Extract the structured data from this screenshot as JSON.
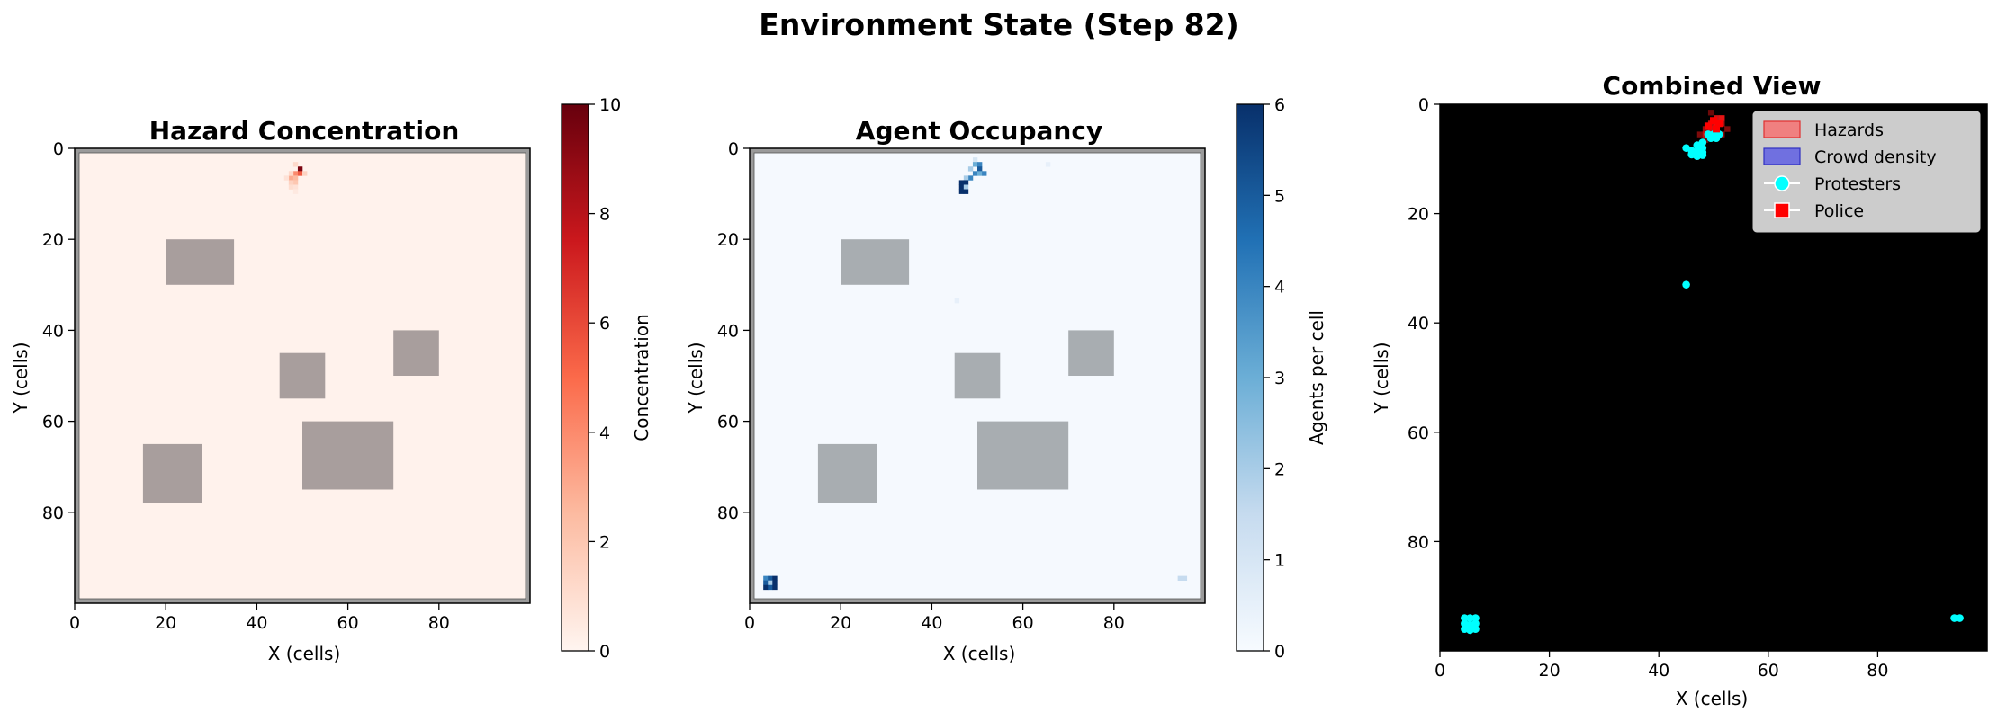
{
  "figure": {
    "suptitle": "Environment State (Step 82)"
  },
  "chart_data": [
    {
      "type": "heatmap",
      "title": "Hazard Concentration",
      "xlabel": "X (cells)",
      "ylabel": "Y (cells)",
      "xlim": [
        0,
        100
      ],
      "ylim": [
        100,
        0
      ],
      "xticks": [
        "0",
        "20",
        "40",
        "60",
        "80"
      ],
      "yticks": [
        "0",
        "20",
        "40",
        "60",
        "80"
      ],
      "colormap": [
        "#fff5f0",
        "#fcbba1",
        "#fb6a4a",
        "#cb181d",
        "#67000d"
      ],
      "base_color": "#fff2ec",
      "colorbar": {
        "label": "Concentration",
        "range": [
          0,
          10
        ],
        "ticks": [
          "0",
          "2",
          "4",
          "6",
          "8",
          "10"
        ]
      },
      "obstacle_color": "#a89e9d",
      "obstacles": [
        [
          20,
          20,
          15,
          10
        ],
        [
          45,
          45,
          10,
          10
        ],
        [
          70,
          40,
          10,
          10
        ],
        [
          50,
          60,
          20,
          15
        ],
        [
          15,
          65,
          13,
          13
        ]
      ],
      "cells": [
        {
          "x": 49,
          "y": 4,
          "v": 9.5
        },
        {
          "x": 48,
          "y": 5,
          "v": 4.0
        },
        {
          "x": 49,
          "y": 5,
          "v": 5.5
        },
        {
          "x": 47,
          "y": 6,
          "v": 3.0
        },
        {
          "x": 48,
          "y": 6,
          "v": 2.5
        },
        {
          "x": 48,
          "y": 7,
          "v": 2.0
        },
        {
          "x": 47,
          "y": 7,
          "v": 1.5
        },
        {
          "x": 48,
          "y": 3,
          "v": 1.2
        },
        {
          "x": 47,
          "y": 8,
          "v": 1.0
        },
        {
          "x": 48,
          "y": 8,
          "v": 0.8
        },
        {
          "x": 50,
          "y": 5,
          "v": 1.5
        },
        {
          "x": 47,
          "y": 5,
          "v": 1.2
        },
        {
          "x": 48,
          "y": 9,
          "v": 0.5
        },
        {
          "x": 46,
          "y": 6,
          "v": 0.8
        }
      ]
    },
    {
      "type": "heatmap",
      "title": "Agent Occupancy",
      "xlabel": "X (cells)",
      "ylabel": "Y (cells)",
      "xlim": [
        0,
        100
      ],
      "ylim": [
        100,
        0
      ],
      "xticks": [
        "0",
        "20",
        "40",
        "60",
        "80"
      ],
      "yticks": [
        "0",
        "20",
        "40",
        "60",
        "80"
      ],
      "colormap": [
        "#f7fbff",
        "#c6dbef",
        "#6baed6",
        "#2171b5",
        "#08306b"
      ],
      "base_color": "#f5f9fe",
      "colorbar": {
        "label": "Agents per cell",
        "range": [
          0,
          6
        ],
        "ticks": [
          "0",
          "1",
          "2",
          "3",
          "4",
          "5",
          "6"
        ]
      },
      "obstacle_color": "#a8adb1",
      "obstacles": [
        [
          20,
          20,
          15,
          10
        ],
        [
          45,
          45,
          10,
          10
        ],
        [
          70,
          40,
          10,
          10
        ],
        [
          50,
          60,
          20,
          15
        ],
        [
          15,
          65,
          13,
          13
        ]
      ],
      "cells": [
        {
          "x": 49,
          "y": 2,
          "v": 1
        },
        {
          "x": 49,
          "y": 3,
          "v": 3
        },
        {
          "x": 50,
          "y": 3,
          "v": 4
        },
        {
          "x": 48,
          "y": 4,
          "v": 2
        },
        {
          "x": 50,
          "y": 4,
          "v": 5
        },
        {
          "x": 49,
          "y": 5,
          "v": 4
        },
        {
          "x": 50,
          "y": 5,
          "v": 3
        },
        {
          "x": 51,
          "y": 5,
          "v": 4
        },
        {
          "x": 48,
          "y": 6,
          "v": 4
        },
        {
          "x": 47,
          "y": 6,
          "v": 2
        },
        {
          "x": 46,
          "y": 7,
          "v": 6
        },
        {
          "x": 47,
          "y": 7,
          "v": 6
        },
        {
          "x": 46,
          "y": 8,
          "v": 6
        },
        {
          "x": 47,
          "y": 8,
          "v": 2
        },
        {
          "x": 46,
          "y": 9,
          "v": 6
        },
        {
          "x": 47,
          "y": 9,
          "v": 6
        },
        {
          "x": 65,
          "y": 3,
          "v": 0.5
        },
        {
          "x": 45,
          "y": 33,
          "v": 0.5
        },
        {
          "x": 3,
          "y": 94,
          "v": 4
        },
        {
          "x": 4,
          "y": 94,
          "v": 5
        },
        {
          "x": 5,
          "y": 94,
          "v": 6
        },
        {
          "x": 3,
          "y": 95,
          "v": 5
        },
        {
          "x": 4,
          "y": 95,
          "v": 2
        },
        {
          "x": 5,
          "y": 95,
          "v": 6
        },
        {
          "x": 3,
          "y": 96,
          "v": 6
        },
        {
          "x": 4,
          "y": 96,
          "v": 5
        },
        {
          "x": 5,
          "y": 96,
          "v": 6
        },
        {
          "x": 94,
          "y": 94,
          "v": 1.5
        },
        {
          "x": 95,
          "y": 94,
          "v": 1.5
        }
      ]
    },
    {
      "type": "scatter",
      "title": "Combined View",
      "xlabel": "X (cells)",
      "ylabel": "Y (cells)",
      "xlim": [
        0,
        100
      ],
      "ylim": [
        100,
        0
      ],
      "xticks": [
        "0",
        "20",
        "40",
        "60",
        "80"
      ],
      "yticks": [
        "0",
        "20",
        "40",
        "60",
        "80"
      ],
      "background": "#000000",
      "legend": {
        "placement": "top-right",
        "entries": [
          {
            "label": "Hazards",
            "marker": "patch",
            "color": "#f08080",
            "edge": "#e03030"
          },
          {
            "label": "Crowd density",
            "marker": "patch",
            "color": "#7070e0",
            "edge": "#3030c0"
          },
          {
            "label": "Protesters",
            "marker": "circle-line",
            "color": "#00ffff"
          },
          {
            "label": "Police",
            "marker": "square-line",
            "color": "#ff0000"
          }
        ]
      },
      "hazard_cells": [
        {
          "x": 50,
          "y": 2,
          "v": 0.9
        },
        {
          "x": 51,
          "y": 2,
          "v": 1.0
        },
        {
          "x": 49,
          "y": 3,
          "v": 0.8
        },
        {
          "x": 50,
          "y": 3,
          "v": 1.0
        },
        {
          "x": 51,
          "y": 3,
          "v": 0.7
        },
        {
          "x": 48,
          "y": 4,
          "v": 0.6
        },
        {
          "x": 49,
          "y": 4,
          "v": 0.9
        },
        {
          "x": 50,
          "y": 4,
          "v": 0.6
        },
        {
          "x": 48,
          "y": 5,
          "v": 0.8
        },
        {
          "x": 49,
          "y": 5,
          "v": 0.5
        },
        {
          "x": 47,
          "y": 5,
          "v": 0.4
        },
        {
          "x": 51,
          "y": 5,
          "v": 0.5
        },
        {
          "x": 52,
          "y": 4,
          "v": 0.4
        },
        {
          "x": 48,
          "y": 6,
          "v": 0.3
        },
        {
          "x": 49,
          "y": 1,
          "v": 0.3
        }
      ],
      "protesters": [
        [
          49,
          5.5
        ],
        [
          50,
          5.5
        ],
        [
          51,
          5.5
        ],
        [
          49.5,
          6.2
        ],
        [
          50.5,
          6.2
        ],
        [
          48,
          7
        ],
        [
          47,
          7.5
        ],
        [
          48,
          8
        ],
        [
          46,
          8.5
        ],
        [
          47,
          8.6
        ],
        [
          48,
          8.8
        ],
        [
          45,
          8
        ],
        [
          46,
          9.2
        ],
        [
          47,
          9.5
        ],
        [
          48,
          9.3
        ],
        [
          45,
          33
        ],
        [
          4.5,
          94
        ],
        [
          5.5,
          94
        ],
        [
          6.5,
          94
        ],
        [
          4.5,
          95
        ],
        [
          5.5,
          95.2
        ],
        [
          6.5,
          95
        ],
        [
          4.5,
          96
        ],
        [
          5.5,
          96.2
        ],
        [
          6.5,
          96
        ],
        [
          94,
          94
        ],
        [
          95,
          94
        ]
      ],
      "police": [
        [
          49,
          4
        ],
        [
          50,
          3
        ],
        [
          50.5,
          4.5
        ],
        [
          51,
          3.5
        ]
      ]
    }
  ]
}
